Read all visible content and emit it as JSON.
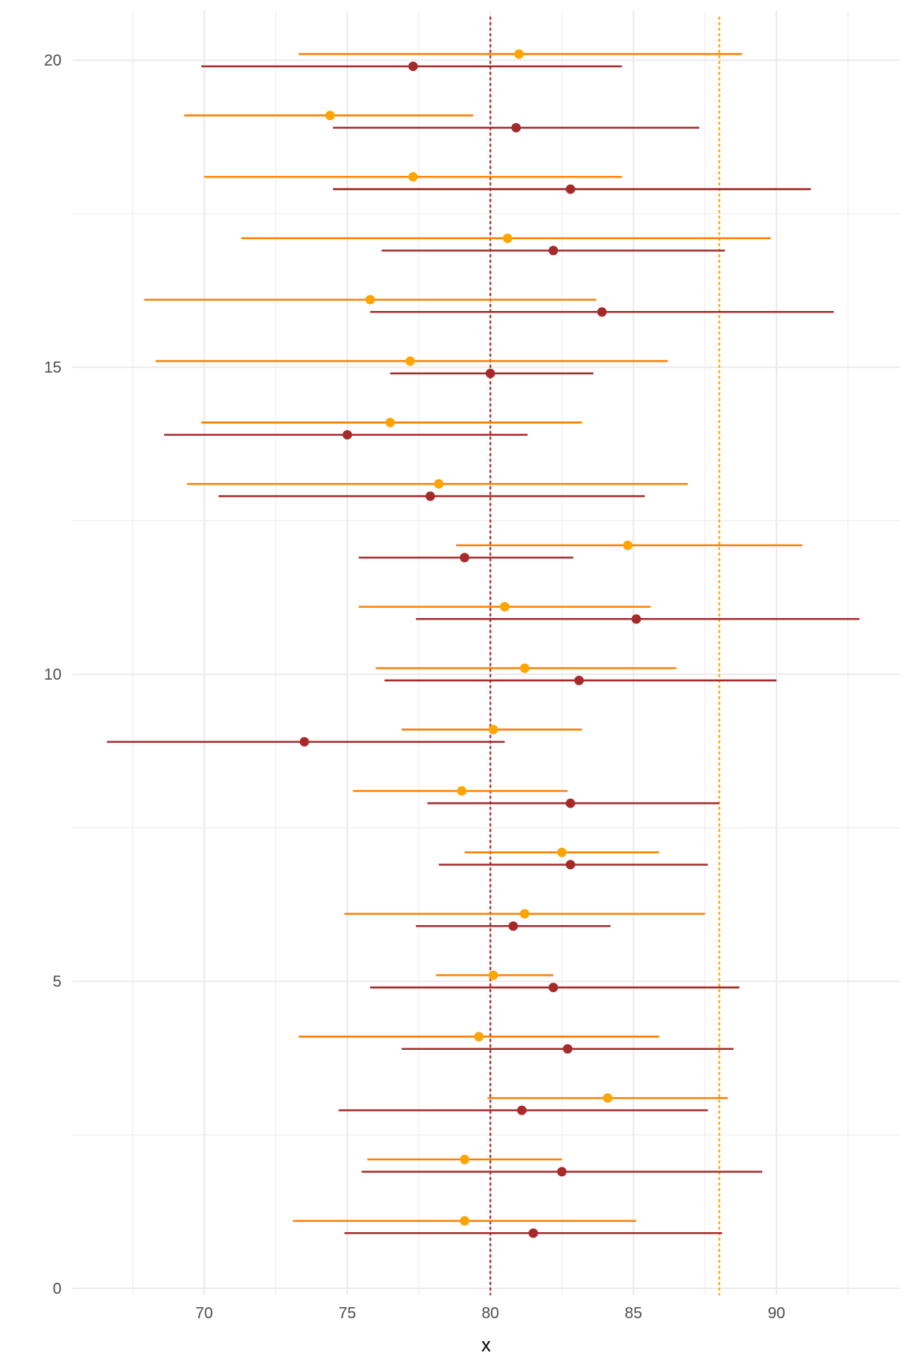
{
  "chart_data": {
    "type": "scatter",
    "subtype": "point-range (horizontal intervals)",
    "title": "",
    "xlabel": "x",
    "ylabel": "",
    "xlim": [
      65.4,
      94.3
    ],
    "ylim": [
      -0.1,
      20.8
    ],
    "x_ticks": [
      70,
      75,
      80,
      85,
      90
    ],
    "y_ticks": [
      0,
      5,
      10,
      15,
      20
    ],
    "grid": true,
    "legend": "none",
    "reference_lines": [
      {
        "x": 80,
        "color": "#B22222",
        "style": "dotted"
      },
      {
        "x": 88,
        "color": "#FFA500",
        "style": "dotted"
      }
    ],
    "series": [
      {
        "color_point": "#FFA500",
        "color_line": "#FF7F00",
        "offset": 0.1,
        "points": [
          {
            "y": 1,
            "x": 79.1,
            "low": 73.1,
            "high": 85.1
          },
          {
            "y": 2,
            "x": 79.1,
            "low": 75.7,
            "high": 82.5
          },
          {
            "y": 3,
            "x": 84.1,
            "low": 79.9,
            "high": 88.3
          },
          {
            "y": 4,
            "x": 79.6,
            "low": 73.3,
            "high": 85.9
          },
          {
            "y": 5,
            "x": 80.1,
            "low": 78.1,
            "high": 82.2
          },
          {
            "y": 6,
            "x": 81.2,
            "low": 74.9,
            "high": 87.5
          },
          {
            "y": 7,
            "x": 82.5,
            "low": 79.1,
            "high": 85.9
          },
          {
            "y": 8,
            "x": 79.0,
            "low": 75.2,
            "high": 82.7
          },
          {
            "y": 9,
            "x": 80.1,
            "low": 76.9,
            "high": 83.2
          },
          {
            "y": 10,
            "x": 81.2,
            "low": 76.0,
            "high": 86.5
          },
          {
            "y": 11,
            "x": 80.5,
            "low": 75.4,
            "high": 85.6
          },
          {
            "y": 12,
            "x": 84.8,
            "low": 78.8,
            "high": 90.9
          },
          {
            "y": 13,
            "x": 78.2,
            "low": 69.4,
            "high": 86.9
          },
          {
            "y": 14,
            "x": 76.5,
            "low": 69.9,
            "high": 83.2
          },
          {
            "y": 15,
            "x": 77.2,
            "low": 68.3,
            "high": 86.2
          },
          {
            "y": 16,
            "x": 75.8,
            "low": 67.9,
            "high": 83.7
          },
          {
            "y": 17,
            "x": 80.6,
            "low": 71.3,
            "high": 89.8
          },
          {
            "y": 18,
            "x": 77.3,
            "low": 70.0,
            "high": 84.6
          },
          {
            "y": 19,
            "x": 74.4,
            "low": 69.3,
            "high": 79.4
          },
          {
            "y": 20,
            "x": 81.0,
            "low": 73.3,
            "high": 88.8
          }
        ]
      },
      {
        "color_point": "#A52A2A",
        "color_line": "#A52A2A",
        "offset": -0.1,
        "points": [
          {
            "y": 1,
            "x": 81.5,
            "low": 74.9,
            "high": 88.1
          },
          {
            "y": 2,
            "x": 82.5,
            "low": 75.5,
            "high": 89.5
          },
          {
            "y": 3,
            "x": 81.1,
            "low": 74.7,
            "high": 87.6
          },
          {
            "y": 4,
            "x": 82.7,
            "low": 76.9,
            "high": 88.5
          },
          {
            "y": 5,
            "x": 82.2,
            "low": 75.8,
            "high": 88.7
          },
          {
            "y": 6,
            "x": 80.8,
            "low": 77.4,
            "high": 84.2
          },
          {
            "y": 7,
            "x": 82.8,
            "low": 78.2,
            "high": 87.6
          },
          {
            "y": 8,
            "x": 82.8,
            "low": 77.8,
            "high": 88.0
          },
          {
            "y": 9,
            "x": 73.5,
            "low": 66.6,
            "high": 80.5
          },
          {
            "y": 10,
            "x": 83.1,
            "low": 76.3,
            "high": 90.0
          },
          {
            "y": 11,
            "x": 85.1,
            "low": 77.4,
            "high": 92.9
          },
          {
            "y": 12,
            "x": 79.1,
            "low": 75.4,
            "high": 82.9
          },
          {
            "y": 13,
            "x": 77.9,
            "low": 70.5,
            "high": 85.4
          },
          {
            "y": 14,
            "x": 75.0,
            "low": 68.6,
            "high": 81.3
          },
          {
            "y": 15,
            "x": 80.0,
            "low": 76.5,
            "high": 83.6
          },
          {
            "y": 16,
            "x": 83.9,
            "low": 75.8,
            "high": 92.0
          },
          {
            "y": 17,
            "x": 82.2,
            "low": 76.2,
            "high": 88.2
          },
          {
            "y": 18,
            "x": 82.8,
            "low": 74.5,
            "high": 91.2
          },
          {
            "y": 19,
            "x": 80.9,
            "low": 74.5,
            "high": 87.3
          },
          {
            "y": 20,
            "x": 77.3,
            "low": 69.9,
            "high": 84.6
          }
        ]
      }
    ]
  }
}
